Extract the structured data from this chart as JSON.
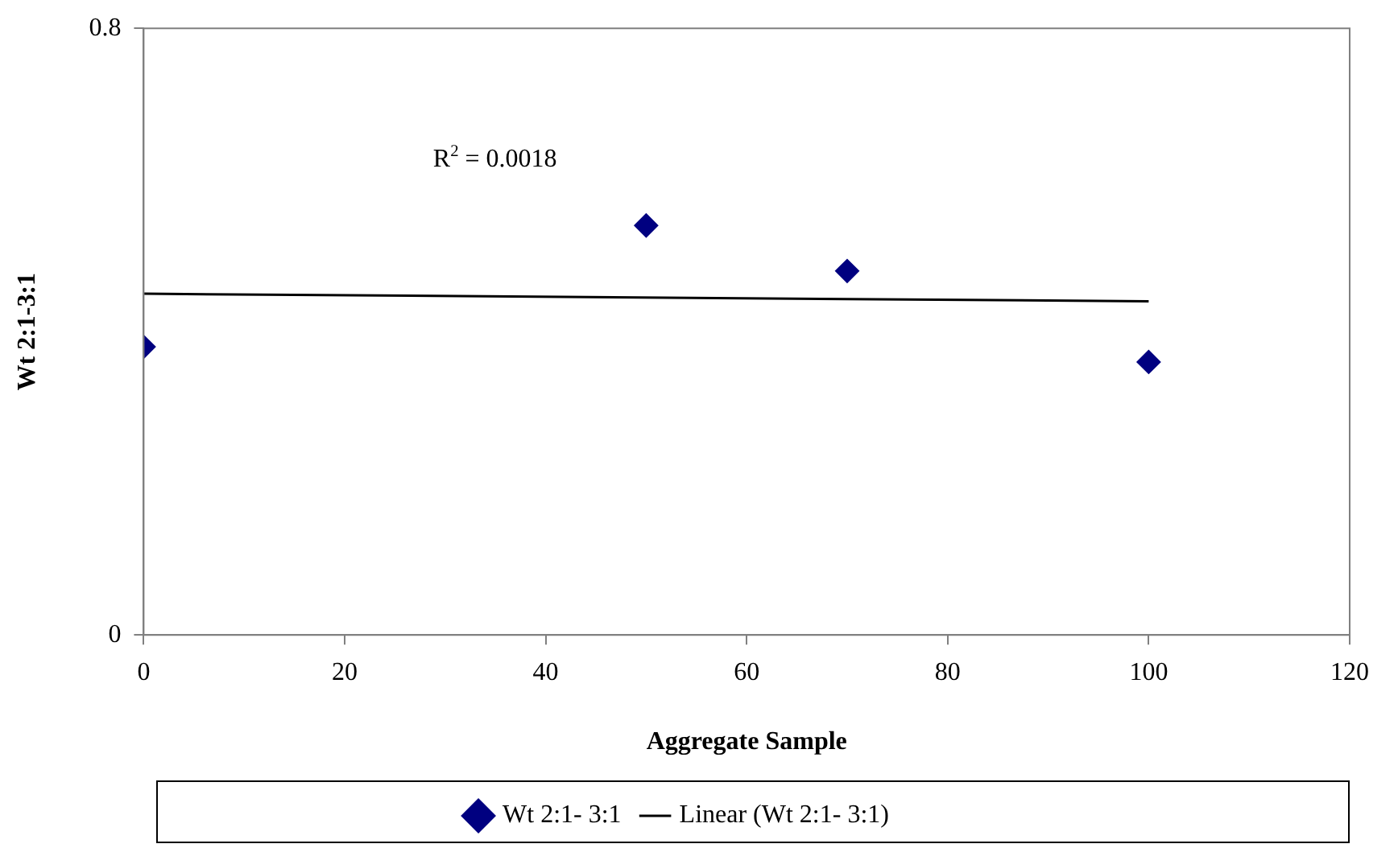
{
  "chart_data": {
    "type": "scatter",
    "xlabel": "Aggregate Sample",
    "ylabel": "Wt 2:1-3:1",
    "xlim": [
      0,
      120
    ],
    "xticks": [
      0,
      20,
      40,
      60,
      80,
      100,
      120
    ],
    "ylim": [
      0,
      0.8
    ],
    "yticks": [
      0,
      0.8
    ],
    "grid": false,
    "legend": "bottom",
    "series": [
      {
        "name": "Wt 2:1- 3:1",
        "type": "scatter",
        "color": "#000080",
        "marker": "diamond",
        "x": [
          0,
          50,
          70,
          100
        ],
        "values": [
          0.38,
          0.54,
          0.48,
          0.36
        ]
      },
      {
        "name": "Linear (Wt 2:1- 3:1)",
        "type": "line",
        "color": "#000000",
        "marker": "none",
        "line_style": "solid",
        "x": [
          0,
          100
        ],
        "values": [
          0.45,
          0.44
        ]
      }
    ],
    "annotations": [
      "R$^{2}$ = 0.0018"
    ]
  }
}
